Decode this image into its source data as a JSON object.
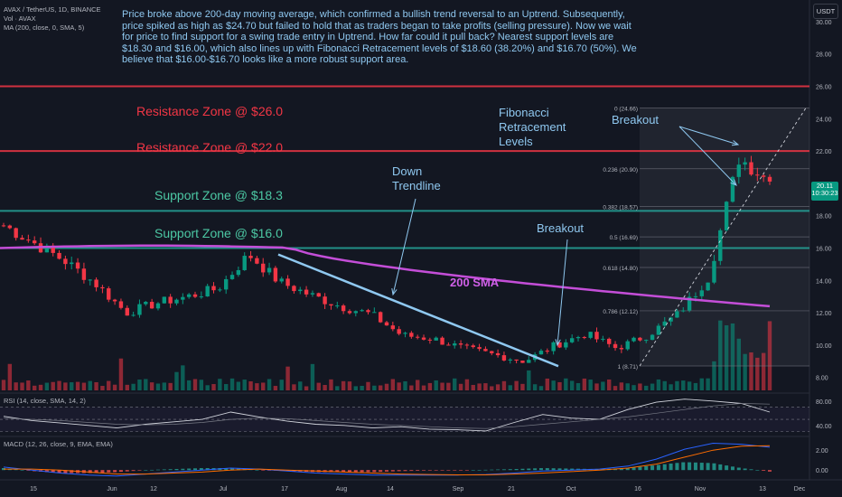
{
  "header": {
    "symbol_line": "AVAX / TetherUS, 1D, BINANCE",
    "vol_line": "Vol · AVAX",
    "ma_line": "MA (200, close, 0, SMA, 5)",
    "currency_button": "USDT"
  },
  "description": "Price broke above 200-day moving average, which confirmed a bullish trend reversal to an Uptrend. Subsequently, price spiked as high as $24.70 but failed to hold that as traders began to take profits (selling pressure). Now we wait for price to find support for a swing trade entry in Uptrend. How far could it pull back? Nearest support levels are $18.30 and $16.00, which also lines up with Fibonacci Retracement levels of $18.60 (38.20%) and $16.70 (50%). We believe that $16.00-$16.70 looks like a more robust support area.",
  "annotations": {
    "resistance_26": "Resistance Zone @ $26.0",
    "resistance_22": "Resistance Zone @ $22.0",
    "support_18": "Support Zone @ $18.3",
    "support_16": "Support Zone @ $16.0",
    "down_trendline": [
      "Down",
      "Trendline"
    ],
    "breakout_1": "Breakout",
    "breakout_2": "Breakout",
    "fibonacci": [
      "Fibonacci",
      "Retracement",
      "Levels"
    ],
    "sma_label": "200 SMA"
  },
  "price_badge": {
    "price": "20.11",
    "countdown": "10:30:23",
    "color": "#089981"
  },
  "colors": {
    "up": "#089981",
    "down": "#f23645",
    "sma": "#c44ed8",
    "resistance": "#f23645",
    "support": "#26a69a",
    "trendline": "#8fc8f0",
    "background": "#131722"
  },
  "chart_data": [
    {
      "type": "candlestick",
      "title": "AVAX / TetherUS, 1D, BINANCE",
      "y_axis": {
        "ylim": [
          7.2,
          31
        ],
        "ticks": [
          "8.00",
          "10.00",
          "12.00",
          "14.00",
          "16.00",
          "18.00",
          "20.00",
          "22.00",
          "24.00",
          "26.00",
          "28.00",
          "30.00"
        ],
        "position": "right"
      },
      "x_axis": {
        "ticks": [
          "15",
          "Jun",
          "12",
          "Jul",
          "17",
          "Aug",
          "14",
          "Sep",
          "21",
          "Oct",
          "16",
          "Nov",
          "13",
          "Dec"
        ]
      },
      "weekly_closes": [
        17.4,
        16.3,
        15.2,
        13.8,
        12.0,
        12.6,
        13.0,
        13.5,
        15.6,
        13.9,
        13.1,
        12.4,
        11.9,
        10.6,
        10.4,
        9.8,
        9.4,
        9.0,
        10.0,
        10.7,
        9.8,
        10.6,
        11.9,
        14.2,
        21.6,
        20.11
      ],
      "sma200": {
        "name": "MA (200, close, 0, SMA, 5)",
        "start": 16.0,
        "end": 12.4
      },
      "horizontal_levels": [
        {
          "label": "Resistance Zone @ $26.0",
          "value": 26.0,
          "kind": "resistance"
        },
        {
          "label": "Resistance Zone @ $22.0",
          "value": 22.0,
          "kind": "resistance"
        },
        {
          "label": "Support Zone @ $18.3",
          "value": 18.3,
          "kind": "support"
        },
        {
          "label": "Support Zone @ $16.0",
          "value": 16.0,
          "kind": "support"
        }
      ],
      "fibonacci_levels": [
        {
          "ratio": "0",
          "value": 24.66,
          "label": "0 (24.66)"
        },
        {
          "ratio": "0.236",
          "value": 20.9,
          "label": "0.236 (20.90)"
        },
        {
          "ratio": "0.382",
          "value": 18.57,
          "label": "0.382 (18.57)"
        },
        {
          "ratio": "0.5",
          "value": 16.69,
          "label": "0.5 (16.69)"
        },
        {
          "ratio": "0.618",
          "value": 14.8,
          "label": "0.618 (14.80)"
        },
        {
          "ratio": "0.786",
          "value": 12.12,
          "label": "0.786 (12.12)"
        },
        {
          "ratio": "1",
          "value": 8.71,
          "label": "1 (8.71)"
        }
      ],
      "down_trendline": {
        "from": 15.6,
        "to": 8.7
      }
    },
    {
      "type": "line",
      "title": "RSI (14, close, SMA, 14, 2)",
      "y_axis": {
        "ticks": [
          "80.00",
          "40.00"
        ],
        "ylim": [
          25,
          90
        ]
      },
      "series": [
        {
          "name": "RSI",
          "values": [
            55,
            48,
            44,
            40,
            36,
            42,
            46,
            50,
            62,
            54,
            47,
            42,
            40,
            36,
            38,
            34,
            33,
            31,
            45,
            58,
            52,
            50,
            66,
            78,
            83,
            80,
            76,
            62
          ]
        },
        {
          "name": "RSI SMA",
          "values": [
            52,
            50,
            48,
            45,
            42,
            41,
            42,
            45,
            50,
            52,
            51,
            48,
            45,
            42,
            40,
            38,
            36,
            35,
            38,
            42,
            46,
            50,
            54,
            60,
            66,
            72,
            76,
            75
          ]
        }
      ]
    },
    {
      "type": "histogram",
      "title": "MACD (12, 26, close, 9, EMA, EMA)",
      "y_axis": {
        "ticks": [
          "2.00",
          "0.00"
        ],
        "ylim": [
          -0.8,
          3.2
        ]
      },
      "series": [
        {
          "name": "MACD",
          "values": [
            0.3,
            0.0,
            -0.3,
            -0.5,
            -0.6,
            -0.4,
            -0.2,
            0.0,
            0.2,
            0.1,
            -0.1,
            -0.3,
            -0.4,
            -0.5,
            -0.5,
            -0.5,
            -0.5,
            -0.45,
            -0.3,
            -0.1,
            0.0,
            0.1,
            0.4,
            1.1,
            2.1,
            2.7,
            2.6,
            2.3
          ]
        },
        {
          "name": "Signal",
          "values": [
            0.1,
            0.1,
            0.0,
            -0.2,
            -0.4,
            -0.4,
            -0.3,
            -0.2,
            0.0,
            0.1,
            0.0,
            -0.1,
            -0.2,
            -0.3,
            -0.4,
            -0.45,
            -0.48,
            -0.48,
            -0.4,
            -0.3,
            -0.15,
            0.0,
            0.2,
            0.6,
            1.3,
            2.0,
            2.4,
            2.45
          ]
        }
      ]
    }
  ]
}
